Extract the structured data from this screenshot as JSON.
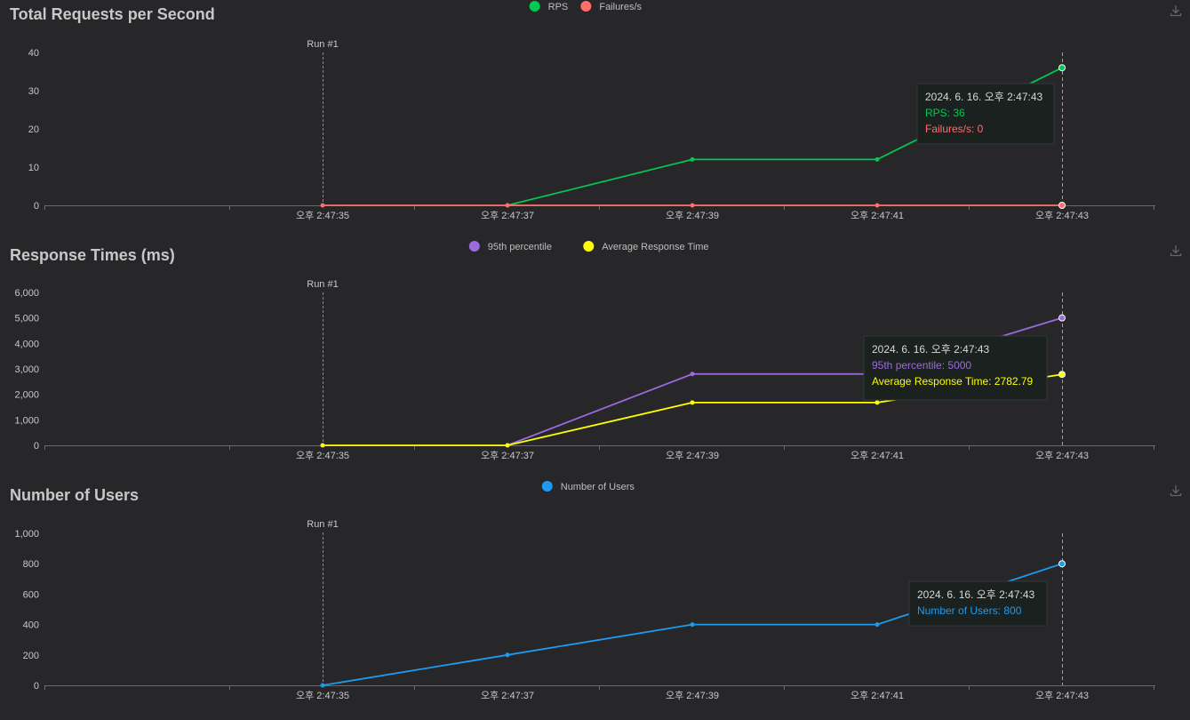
{
  "panels": [
    {
      "title": "Total Requests per Second",
      "run_label": "Run #1",
      "download_icon": "download-icon",
      "tooltip": {
        "date": "2024. 6. 16. 오후 2:47:43",
        "lines": [
          "RPS: 36",
          "Failures/s: 0"
        ]
      },
      "chart_data": {
        "type": "line",
        "categories": [
          "오후 2:47:35",
          "오후 2:47:37",
          "오후 2:47:39",
          "오후 2:47:41",
          "오후 2:47:43"
        ],
        "y_ticks": [
          "0",
          "10",
          "20",
          "30",
          "40"
        ],
        "ylim": [
          0,
          40
        ],
        "series": [
          {
            "name": "RPS",
            "color": "#00c853",
            "values": [
              null,
              0,
              12,
              12,
              36
            ]
          },
          {
            "name": "Failures/s",
            "color": "#ff6d6d",
            "values": [
              0,
              0,
              0,
              0,
              0
            ]
          }
        ],
        "legend": "top-center",
        "grid": false
      }
    },
    {
      "title": "Response Times (ms)",
      "run_label": "Run #1",
      "download_icon": "download-icon",
      "tooltip": {
        "date": "2024. 6. 16. 오후 2:47:43",
        "lines": [
          "95th percentile: 5000",
          "Average Response Time: 2782.79"
        ]
      },
      "chart_data": {
        "type": "line",
        "categories": [
          "오후 2:47:35",
          "오후 2:47:37",
          "오후 2:47:39",
          "오후 2:47:41",
          "오후 2:47:43"
        ],
        "y_ticks": [
          "0",
          "1,000",
          "2,000",
          "3,000",
          "4,000",
          "5,000",
          "6,000"
        ],
        "ylim": [
          0,
          6000
        ],
        "series": [
          {
            "name": "95th percentile",
            "color": "#9c6ade",
            "values": [
              null,
              0,
              2800,
              2800,
              5000
            ]
          },
          {
            "name": "Average Response Time",
            "color": "#ffff00",
            "values": [
              0,
              0,
              1680,
              1680,
              2782.79
            ]
          }
        ],
        "legend": "top-center",
        "grid": false
      }
    },
    {
      "title": "Number of Users",
      "run_label": "Run #1",
      "download_icon": "download-icon",
      "tooltip": {
        "date": "2024. 6. 16. 오후 2:47:43",
        "lines": [
          "Number of Users: 800"
        ]
      },
      "chart_data": {
        "type": "line",
        "categories": [
          "오후 2:47:35",
          "오후 2:47:37",
          "오후 2:47:39",
          "오후 2:47:41",
          "오후 2:47:43"
        ],
        "y_ticks": [
          "0",
          "200",
          "400",
          "600",
          "800",
          "1,000"
        ],
        "ylim": [
          0,
          1000
        ],
        "series": [
          {
            "name": "Number of Users",
            "color": "#1e9bf0",
            "values": [
              0,
              200,
              400,
              400,
              800
            ]
          }
        ],
        "legend": "top-center",
        "grid": false
      }
    }
  ]
}
